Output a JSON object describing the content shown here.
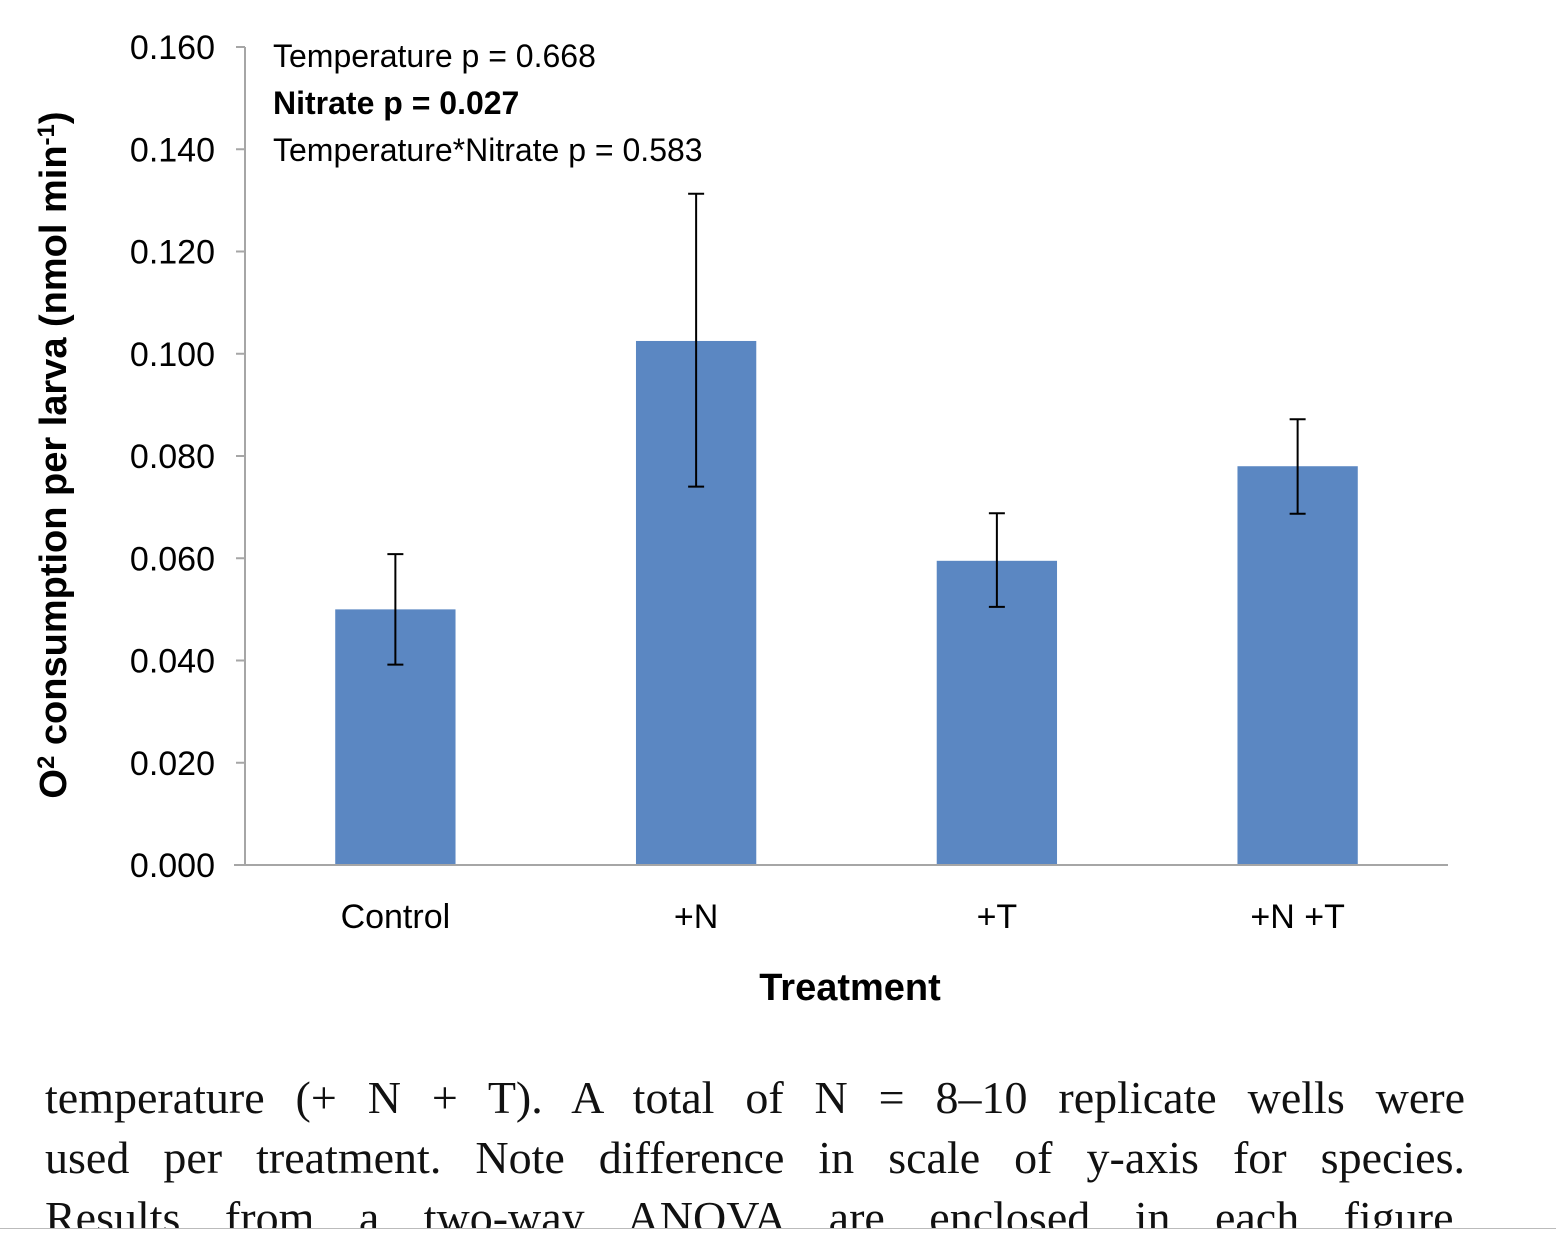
{
  "chart_data": {
    "type": "bar",
    "categories": [
      "Control",
      "+N",
      "+T",
      "+N +T"
    ],
    "values": [
      0.05,
      0.1025,
      0.0595,
      0.078
    ],
    "errors_upper": [
      0.0608,
      0.1313,
      0.0688,
      0.0872
    ],
    "errors_lower": [
      0.0392,
      0.074,
      0.0505,
      0.0687
    ],
    "yticks": [
      "0.000",
      "0.020",
      "0.040",
      "0.060",
      "0.080",
      "0.100",
      "0.120",
      "0.140",
      "0.160"
    ],
    "ylim": [
      0,
      0.16
    ],
    "xlabel": "Treatment",
    "ylabel_parts": [
      "O",
      "2",
      " consumption per larva (nmol min",
      "-1",
      ")"
    ],
    "annotations": [
      "Temperature p = 0.668",
      "Nitrate p = 0.027",
      "Temperature*Nitrate p = 0.583"
    ],
    "bar_color": "#5b87c2",
    "grid": false,
    "legend": "none"
  },
  "caption": {
    "lines": [
      "temperature (+ N + T). A total of N = 8–10 replicate wells were",
      "used per treatment. Note difference in scale of y-axis for species.",
      "Results from a two-way ANOVA are enclosed in each figure."
    ]
  }
}
